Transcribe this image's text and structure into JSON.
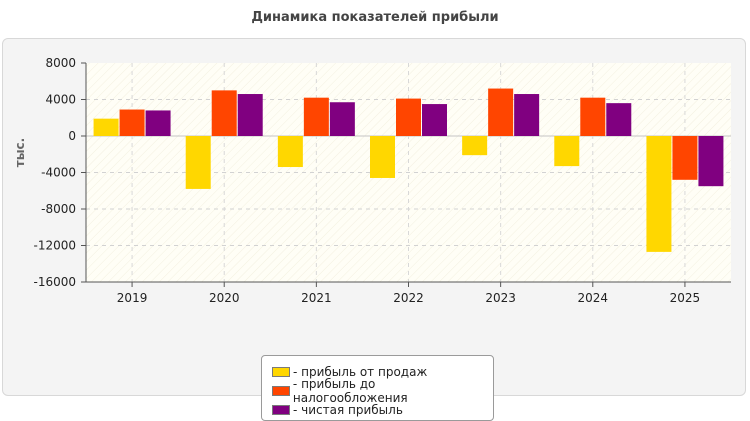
{
  "chart_data": {
    "type": "bar",
    "title": "Динамика показателей прибыли",
    "ylabel": "тыс.",
    "xlabel": "",
    "categories": [
      "2019",
      "2020",
      "2021",
      "2022",
      "2023",
      "2024",
      "2025"
    ],
    "series": [
      {
        "name": "- прибыль от продаж",
        "color": "#ffd700",
        "values": [
          1900,
          -5800,
          -3400,
          -4600,
          -2100,
          -3300,
          -12700
        ]
      },
      {
        "name": "- прибыль до налогообложения",
        "color": "#ff4500",
        "values": [
          2900,
          5000,
          4200,
          4100,
          5200,
          4200,
          -4800
        ]
      },
      {
        "name": "- чистая прибыль",
        "color": "#800080",
        "values": [
          2800,
          4600,
          3700,
          3500,
          4600,
          3600,
          -5500
        ]
      }
    ],
    "ylim": [
      -16000,
      8000
    ],
    "yticks": [
      8000,
      4000,
      0,
      -4000,
      -8000,
      -12000,
      -16000
    ],
    "ytick_labels": [
      "8000",
      "4000",
      "0",
      "-4000",
      "-8000",
      "-12000",
      "-16000"
    ],
    "grid": true,
    "legend_position": "bottom"
  }
}
